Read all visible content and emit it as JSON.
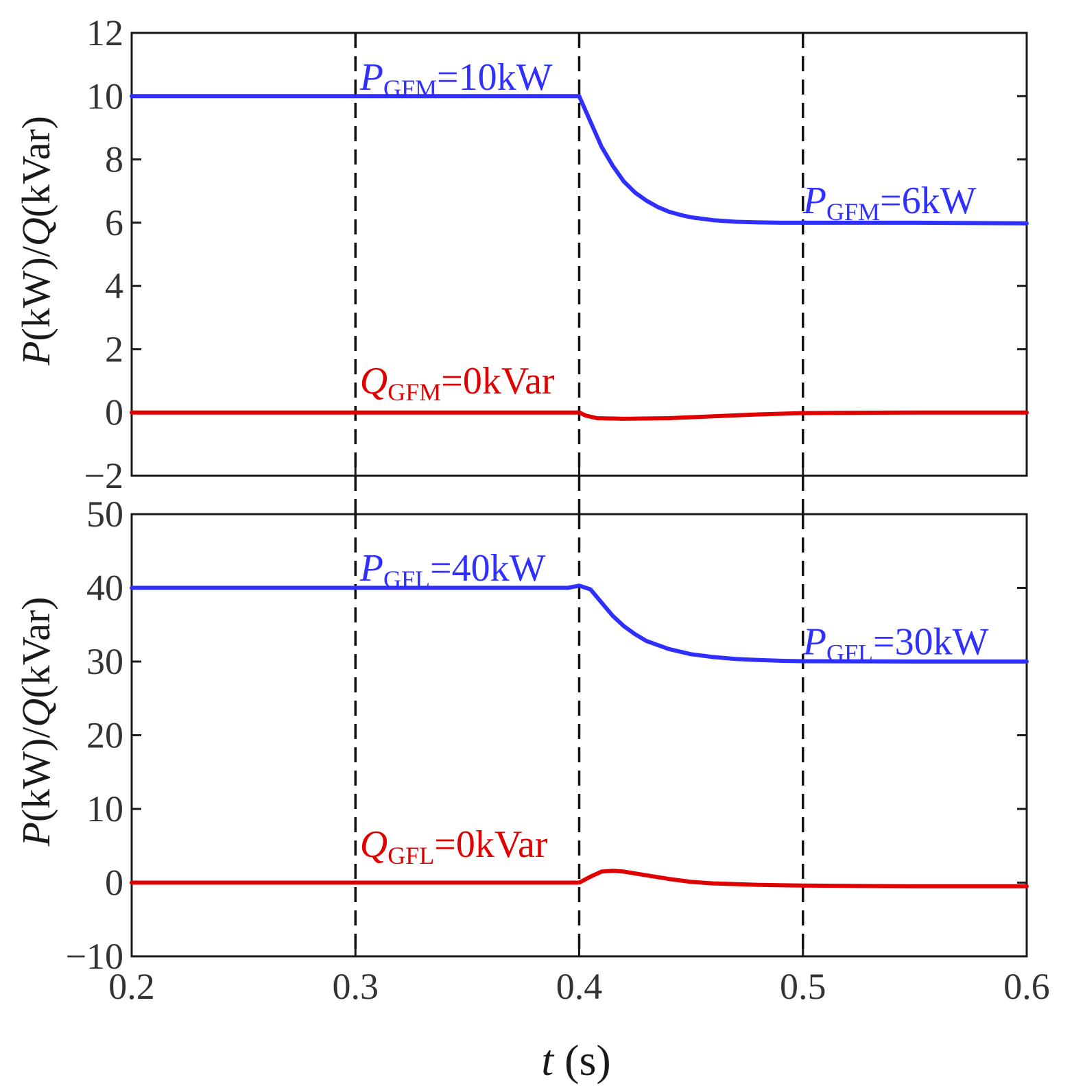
{
  "chart_data": [
    {
      "type": "line",
      "xlim": [
        0.2,
        0.6
      ],
      "ylim": [
        -2,
        12
      ],
      "yticks": [
        -2,
        0,
        2,
        4,
        6,
        8,
        10,
        12
      ],
      "ytick_labels": [
        "−2",
        "0",
        "2",
        "4",
        "6",
        "8",
        "10",
        "12"
      ],
      "ylabel": {
        "p": "P",
        "p_unit": "(kW)/",
        "q": "Q",
        "q_unit": "(kVar)"
      },
      "grid": false,
      "vlines": [
        0.3,
        0.4,
        0.5
      ],
      "series": [
        {
          "color": "#2f2fff",
          "x": [
            0.2,
            0.25,
            0.3,
            0.35,
            0.4,
            0.405,
            0.41,
            0.415,
            0.42,
            0.425,
            0.43,
            0.435,
            0.44,
            0.445,
            0.45,
            0.46,
            0.47,
            0.48,
            0.49,
            0.5,
            0.55,
            0.6
          ],
          "y": [
            10.0,
            10.0,
            10.0,
            10.0,
            10.0,
            9.2,
            8.4,
            7.8,
            7.3,
            6.95,
            6.7,
            6.5,
            6.35,
            6.25,
            6.17,
            6.08,
            6.03,
            6.01,
            6.0,
            6.0,
            6.0,
            5.98
          ]
        },
        {
          "color": "#e00000",
          "x": [
            0.2,
            0.3,
            0.4,
            0.403,
            0.408,
            0.42,
            0.44,
            0.46,
            0.48,
            0.5,
            0.55,
            0.6
          ],
          "y": [
            0.0,
            0.0,
            0.0,
            -0.1,
            -0.18,
            -0.2,
            -0.18,
            -0.12,
            -0.06,
            -0.02,
            0.0,
            0.0
          ]
        }
      ],
      "annotations": [
        {
          "x": 0.302,
          "y": 10.2,
          "color": "#2f2fff",
          "symbol": "P",
          "subscript": "GFM",
          "value": "=10kW"
        },
        {
          "x": 0.5,
          "y": 6.3,
          "color": "#2f2fff",
          "symbol": "P",
          "subscript": "GFM",
          "value": "=6kW"
        },
        {
          "x": 0.302,
          "y": 0.6,
          "color": "#e00000",
          "symbol": "Q",
          "subscript": "GFM",
          "value": "=0kVar"
        }
      ]
    },
    {
      "type": "line",
      "xlim": [
        0.2,
        0.6
      ],
      "ylim": [
        -10,
        50
      ],
      "yticks": [
        -10,
        0,
        10,
        20,
        30,
        40,
        50
      ],
      "ytick_labels": [
        "−10",
        "0",
        "10",
        "20",
        "30",
        "40",
        "50"
      ],
      "xticks": [
        0.2,
        0.3,
        0.4,
        0.5,
        0.6
      ],
      "xtick_labels": [
        "0.2",
        "0.3",
        "0.4",
        "0.5",
        "0.6"
      ],
      "xlabel": {
        "symbol": "t",
        "unit": " (s)"
      },
      "ylabel": {
        "p": "P",
        "p_unit": "(kW)/",
        "q": "Q",
        "q_unit": "(kVar)"
      },
      "grid": false,
      "vlines": [
        0.3,
        0.4,
        0.5
      ],
      "series": [
        {
          "color": "#2f2fff",
          "x": [
            0.2,
            0.3,
            0.395,
            0.4,
            0.405,
            0.41,
            0.415,
            0.42,
            0.425,
            0.43,
            0.44,
            0.45,
            0.46,
            0.47,
            0.48,
            0.49,
            0.5,
            0.55,
            0.6
          ],
          "y": [
            40.0,
            40.0,
            40.0,
            40.3,
            39.8,
            38.0,
            36.2,
            34.8,
            33.7,
            32.8,
            31.7,
            31.0,
            30.6,
            30.35,
            30.2,
            30.1,
            30.05,
            30.0,
            30.0
          ]
        },
        {
          "color": "#e00000",
          "x": [
            0.2,
            0.3,
            0.4,
            0.405,
            0.41,
            0.415,
            0.42,
            0.43,
            0.44,
            0.45,
            0.46,
            0.48,
            0.5,
            0.55,
            0.6
          ],
          "y": [
            0.0,
            0.0,
            0.0,
            0.8,
            1.5,
            1.6,
            1.5,
            1.0,
            0.5,
            0.1,
            -0.1,
            -0.3,
            -0.4,
            -0.5,
            -0.5
          ]
        }
      ],
      "annotations": [
        {
          "x": 0.302,
          "y": 41.0,
          "color": "#2f2fff",
          "symbol": "P",
          "subscript": "GFL",
          "value": "=40kW"
        },
        {
          "x": 0.5,
          "y": 31.0,
          "color": "#2f2fff",
          "symbol": "P",
          "subscript": "GFL",
          "value": "=30kW"
        },
        {
          "x": 0.302,
          "y": 3.5,
          "color": "#e00000",
          "symbol": "Q",
          "subscript": "GFL",
          "value": "=0kVar"
        }
      ]
    }
  ]
}
